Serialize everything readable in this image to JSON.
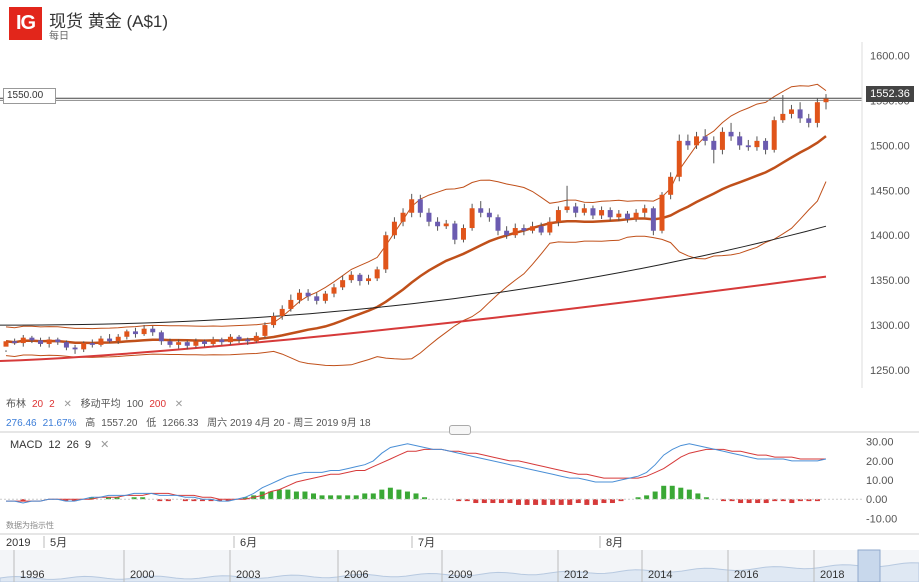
{
  "header": {
    "logo": "IG",
    "title": "现货 黄金 (A$1)",
    "interval": "每日"
  },
  "price_marker": "1550.00",
  "last_price": "1552.36",
  "indicators": {
    "bollinger_label": "布林",
    "bollinger_period": "20",
    "bollinger_dev": "2",
    "ma_label": "移动平均",
    "ma_fast": "100",
    "ma_slow": "200",
    "close_icon": "x-icon",
    "stat_change": "276.46",
    "stat_change_pct": "21.67%",
    "high_label": "高",
    "high_value": "1557.20",
    "low_label": "低",
    "low_value": "1266.33",
    "date_range": "周六 2019 4月 20 - 周三 2019 9月 18"
  },
  "macd": {
    "label": "MACD",
    "fast": "12",
    "slow": "26",
    "signal": "9",
    "disclaimer": "数据为指示性"
  },
  "time_axis": {
    "year": "2019",
    "months": [
      "5月",
      "6月",
      "7月",
      "8月"
    ]
  },
  "navigator": {
    "years": [
      "1996",
      "2000",
      "2003",
      "2006",
      "2009",
      "2012",
      "2014",
      "2016",
      "2018"
    ]
  },
  "colors": {
    "up_candle": "#e0541a",
    "down_candle": "#6b5bb0",
    "bollinger": "#c0501a",
    "ma100": "#222222",
    "ma200": "#d63a3a",
    "macd_line": "#4a8fd6",
    "signal_line": "#d63a3a",
    "hist_pos": "#3aa835",
    "hist_neg": "#d63a3a"
  },
  "chart_data": [
    {
      "type": "candlestick",
      "title": "现货 黄金 (A$1)",
      "y_ticks": [
        "1250.00",
        "1300.00",
        "1350.00",
        "1400.00",
        "1450.00",
        "1500.00",
        "1550.00",
        "1600.00"
      ],
      "ylim": [
        1230,
        1615
      ],
      "x_labels": [
        "5月",
        "6月",
        "7月",
        "8月"
      ],
      "candles": [
        [
          1276,
          1282,
          1272,
          1270
        ],
        [
          1282,
          1280,
          1285,
          1278
        ],
        [
          1280,
          1286,
          1289,
          1276
        ],
        [
          1286,
          1283,
          1288,
          1280
        ],
        [
          1283,
          1279,
          1286,
          1276
        ],
        [
          1279,
          1284,
          1287,
          1275
        ],
        [
          1284,
          1281,
          1286,
          1278
        ],
        [
          1281,
          1275,
          1283,
          1272
        ],
        [
          1275,
          1273,
          1278,
          1268
        ],
        [
          1273,
          1280,
          1282,
          1270
        ],
        [
          1280,
          1278,
          1284,
          1275
        ],
        [
          1278,
          1285,
          1288,
          1276
        ],
        [
          1285,
          1282,
          1290,
          1280
        ],
        [
          1282,
          1287,
          1290,
          1279
        ],
        [
          1287,
          1293,
          1295,
          1284
        ],
        [
          1293,
          1290,
          1297,
          1286
        ],
        [
          1290,
          1296,
          1300,
          1288
        ],
        [
          1296,
          1292,
          1299,
          1288
        ],
        [
          1292,
          1282,
          1294,
          1278
        ],
        [
          1282,
          1278,
          1285,
          1275
        ],
        [
          1278,
          1281,
          1284,
          1274
        ],
        [
          1281,
          1277,
          1283,
          1273
        ],
        [
          1277,
          1282,
          1285,
          1275
        ],
        [
          1282,
          1279,
          1284,
          1276
        ],
        [
          1279,
          1284,
          1287,
          1277
        ],
        [
          1284,
          1281,
          1286,
          1278
        ],
        [
          1281,
          1287,
          1290,
          1278
        ],
        [
          1287,
          1284,
          1289,
          1280
        ],
        [
          1284,
          1282,
          1286,
          1278
        ],
        [
          1282,
          1288,
          1292,
          1280
        ],
        [
          1288,
          1300,
          1303,
          1286
        ],
        [
          1300,
          1310,
          1314,
          1297
        ],
        [
          1310,
          1318,
          1322,
          1306
        ],
        [
          1318,
          1328,
          1334,
          1315
        ],
        [
          1328,
          1336,
          1340,
          1324
        ],
        [
          1336,
          1332,
          1340,
          1327
        ],
        [
          1332,
          1327,
          1336,
          1323
        ],
        [
          1327,
          1335,
          1338,
          1324
        ],
        [
          1335,
          1342,
          1346,
          1331
        ],
        [
          1342,
          1350,
          1355,
          1339
        ],
        [
          1350,
          1356,
          1360,
          1347
        ],
        [
          1356,
          1349,
          1358,
          1344
        ],
        [
          1349,
          1352,
          1356,
          1345
        ],
        [
          1352,
          1362,
          1365,
          1349
        ],
        [
          1362,
          1400,
          1404,
          1358
        ],
        [
          1400,
          1415,
          1420,
          1396
        ],
        [
          1415,
          1425,
          1430,
          1410
        ],
        [
          1425,
          1440,
          1446,
          1420
        ],
        [
          1440,
          1425,
          1445,
          1420
        ],
        [
          1425,
          1415,
          1430,
          1410
        ],
        [
          1415,
          1410,
          1420,
          1405
        ],
        [
          1410,
          1413,
          1417,
          1407
        ],
        [
          1413,
          1395,
          1416,
          1390
        ],
        [
          1395,
          1408,
          1412,
          1392
        ],
        [
          1408,
          1430,
          1435,
          1405
        ],
        [
          1430,
          1425,
          1438,
          1420
        ],
        [
          1425,
          1420,
          1430,
          1415
        ],
        [
          1420,
          1405,
          1423,
          1400
        ],
        [
          1405,
          1400,
          1410,
          1396
        ],
        [
          1400,
          1408,
          1413,
          1397
        ],
        [
          1408,
          1405,
          1412,
          1400
        ],
        [
          1405,
          1410,
          1415,
          1402
        ],
        [
          1410,
          1403,
          1414,
          1400
        ],
        [
          1403,
          1415,
          1420,
          1400
        ],
        [
          1415,
          1428,
          1432,
          1410
        ],
        [
          1428,
          1432,
          1455,
          1425
        ],
        [
          1432,
          1425,
          1436,
          1420
        ],
        [
          1425,
          1430,
          1435,
          1422
        ],
        [
          1430,
          1422,
          1433,
          1418
        ],
        [
          1422,
          1428,
          1432,
          1418
        ],
        [
          1428,
          1420,
          1431,
          1416
        ],
        [
          1420,
          1424,
          1428,
          1416
        ],
        [
          1424,
          1418,
          1427,
          1414
        ],
        [
          1418,
          1425,
          1429,
          1415
        ],
        [
          1425,
          1430,
          1434,
          1420
        ],
        [
          1430,
          1405,
          1432,
          1400
        ],
        [
          1405,
          1445,
          1448,
          1402
        ],
        [
          1445,
          1465,
          1470,
          1440
        ],
        [
          1465,
          1505,
          1512,
          1460
        ],
        [
          1505,
          1500,
          1512,
          1495
        ],
        [
          1500,
          1510,
          1515,
          1496
        ],
        [
          1510,
          1505,
          1518,
          1500
        ],
        [
          1505,
          1495,
          1510,
          1480
        ],
        [
          1495,
          1515,
          1520,
          1490
        ],
        [
          1515,
          1510,
          1525,
          1505
        ],
        [
          1510,
          1500,
          1515,
          1495
        ],
        [
          1500,
          1498,
          1506,
          1494
        ],
        [
          1498,
          1505,
          1510,
          1494
        ],
        [
          1505,
          1495,
          1508,
          1490
        ],
        [
          1495,
          1528,
          1532,
          1492
        ],
        [
          1528,
          1535,
          1556,
          1525
        ],
        [
          1535,
          1540,
          1545,
          1530
        ],
        [
          1540,
          1530,
          1548,
          1525
        ],
        [
          1530,
          1525,
          1535,
          1520
        ],
        [
          1525,
          1548,
          1552,
          1520
        ],
        [
          1548,
          1552,
          1557,
          1540
        ]
      ],
      "candle_format": "[open, close, high, low]",
      "ma100_range": [
        1300,
        1410
      ],
      "ma200_range": [
        1260,
        1354
      ],
      "last": 1552.36,
      "marker": 1550.0
    },
    {
      "type": "line",
      "title": "MACD",
      "y_ticks": [
        "-10.00",
        "0.00",
        "10.00",
        "20.00",
        "30.00"
      ],
      "ylim": [
        -14,
        33
      ],
      "series": [
        {
          "name": "MACD",
          "values": [
            -1,
            -1,
            -2,
            -1,
            -1,
            0,
            0,
            -1,
            -1,
            0,
            1,
            1,
            2,
            2,
            2,
            3,
            3,
            3,
            2,
            2,
            2,
            1,
            1,
            0,
            0,
            -1,
            -1,
            0,
            1,
            3,
            6,
            8,
            10,
            12,
            13,
            14,
            14,
            14,
            15,
            15,
            16,
            17,
            18,
            20,
            24,
            27,
            28,
            29,
            28,
            27,
            26,
            26,
            25,
            24,
            23,
            22,
            21,
            20,
            19,
            18,
            17,
            16,
            15,
            14,
            13,
            12,
            11,
            11,
            10,
            9,
            9,
            9,
            10,
            11,
            12,
            14,
            18,
            23,
            26,
            28,
            29,
            28,
            27,
            26,
            25,
            24,
            23,
            22,
            21,
            21,
            21,
            21,
            20,
            20,
            20,
            20,
            21
          ]
        },
        {
          "name": "Signal",
          "values": [
            -1,
            -1,
            -1,
            -1,
            -1,
            0,
            0,
            0,
            0,
            0,
            0,
            1,
            1,
            1,
            2,
            2,
            2,
            3,
            3,
            3,
            2,
            2,
            2,
            1,
            1,
            0,
            0,
            0,
            0,
            1,
            2,
            4,
            5,
            7,
            9,
            10,
            11,
            12,
            13,
            13,
            14,
            15,
            15,
            17,
            19,
            21,
            23,
            25,
            25,
            26,
            26,
            26,
            25,
            25,
            24,
            24,
            23,
            22,
            21,
            20,
            20,
            19,
            18,
            17,
            16,
            15,
            14,
            13,
            13,
            12,
            11,
            11,
            11,
            11,
            11,
            12,
            14,
            16,
            19,
            22,
            24,
            25,
            26,
            26,
            26,
            25,
            25,
            24,
            23,
            23,
            22,
            22,
            22,
            21,
            21,
            21,
            21
          ]
        },
        {
          "name": "Histogram",
          "values": [
            0,
            0,
            -1,
            0,
            0,
            0,
            0,
            -1,
            -1,
            0,
            1,
            0,
            1,
            1,
            0,
            1,
            1,
            0,
            -1,
            -1,
            0,
            -1,
            -1,
            -1,
            -1,
            -1,
            -1,
            0,
            1,
            2,
            4,
            4,
            5,
            5,
            4,
            4,
            3,
            2,
            2,
            2,
            2,
            2,
            3,
            3,
            5,
            6,
            5,
            4,
            3,
            1,
            0,
            0,
            0,
            -1,
            -1,
            -2,
            -2,
            -2,
            -2,
            -2,
            -3,
            -3,
            -3,
            -3,
            -3,
            -3,
            -3,
            -2,
            -3,
            -3,
            -2,
            -2,
            -1,
            0,
            1,
            2,
            4,
            7,
            7,
            6,
            5,
            3,
            1,
            0,
            -1,
            -1,
            -2,
            -2,
            -2,
            -2,
            -1,
            -1,
            -2,
            -1,
            -1,
            -1,
            0
          ]
        }
      ]
    }
  ]
}
